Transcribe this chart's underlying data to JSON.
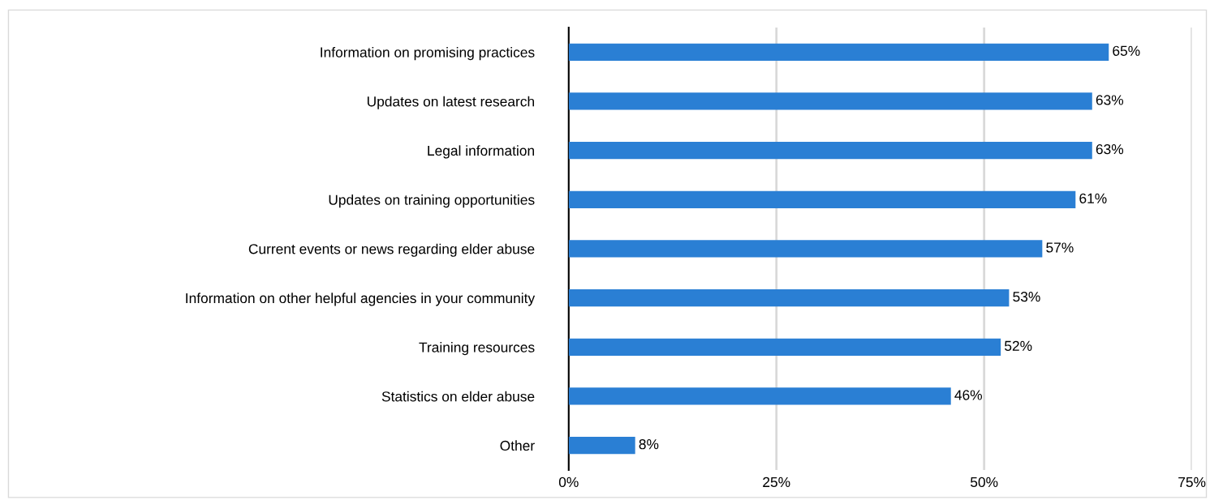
{
  "chart_data": {
    "type": "bar",
    "orientation": "horizontal",
    "categories": [
      "Information on promising practices",
      "Updates on latest research",
      "Legal information",
      "Updates on training opportunities",
      "Current events or news regarding elder abuse",
      "Information on other helpful agencies in your community",
      "Training resources",
      "Statistics on elder abuse",
      "Other"
    ],
    "values": [
      65,
      63,
      63,
      61,
      57,
      53,
      52,
      46,
      8
    ],
    "value_labels": [
      "65%",
      "63%",
      "63%",
      "61%",
      "57%",
      "53%",
      "52%",
      "46%",
      "8%"
    ],
    "color": "#2a7fd4",
    "xlim": [
      0,
      75
    ],
    "xticks": [
      {
        "value": 0,
        "label": "0%"
      },
      {
        "value": 25,
        "label": "25%"
      },
      {
        "value": 50,
        "label": "50%"
      },
      {
        "value": 75,
        "label": "75%"
      }
    ],
    "grid": "x"
  }
}
